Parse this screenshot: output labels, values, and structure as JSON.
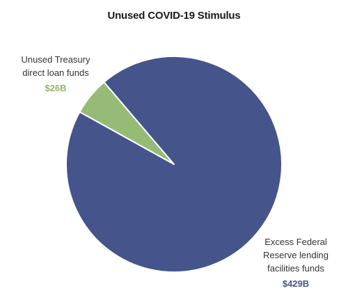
{
  "chart_data": {
    "type": "pie",
    "title": "Unused COVID-19 Stimulus",
    "slices": [
      {
        "label_lines": [
          "Excess Federal",
          "Reserve lending",
          "facilities funds"
        ],
        "value": 429,
        "value_label": "$429B",
        "color": "#45548a"
      },
      {
        "label_lines": [
          "Unused Treasury",
          "direct loan funds"
        ],
        "value": 26,
        "value_label": "$26B",
        "color": "#95bb77"
      }
    ],
    "label_value_colors": {
      "fed": "#45548a",
      "treasury": "#8db76a"
    },
    "slice_border_color": "#ffffff"
  }
}
